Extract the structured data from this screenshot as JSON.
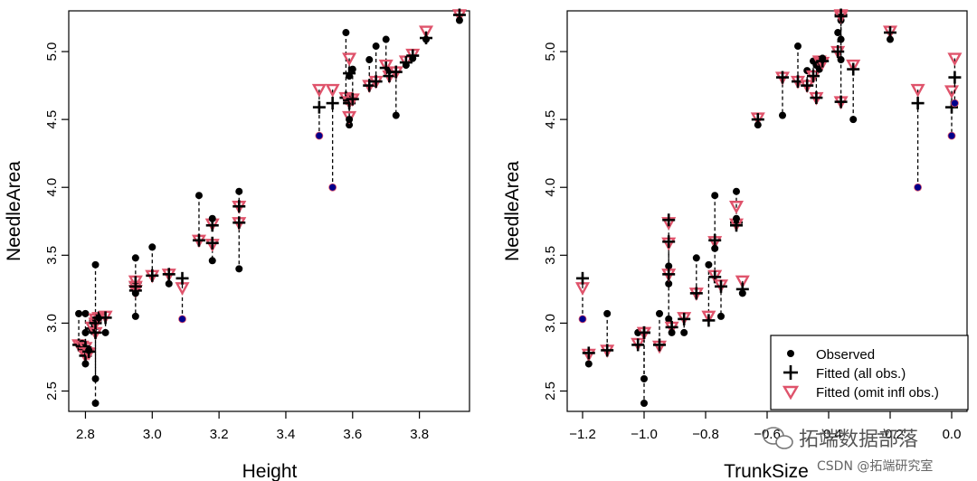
{
  "colors": {
    "observed": "#000000",
    "influential_observed": "#00008B",
    "fitted_all": "#000000",
    "fitted_omit": "#DF536B"
  },
  "watermark": {
    "line1": "拓端数据部落",
    "line2": "CSDN @拓端研究室"
  },
  "chart_data": [
    {
      "type": "scatter",
      "xlabel": "Height",
      "ylabel": "NeedleArea",
      "xlim": [
        2.75,
        3.95
      ],
      "ylim": [
        2.35,
        5.3
      ],
      "xticks": [
        2.8,
        3.0,
        3.2,
        3.4,
        3.6,
        3.8
      ],
      "xtick_labels": [
        "2.8",
        "3.0",
        "3.2",
        "3.4",
        "3.6",
        "3.8"
      ],
      "yticks": [
        2.5,
        3.0,
        3.5,
        4.0,
        4.5,
        5.0
      ],
      "ytick_labels": [
        "2.5",
        "3.0",
        "3.5",
        "4.0",
        "4.5",
        "5.0"
      ],
      "grid": false,
      "points": [
        {
          "x": 2.78,
          "obs": 3.07,
          "fit_all": 2.84,
          "fit_omit": 2.84
        },
        {
          "x": 2.79,
          "obs": 2.85,
          "fit_all": 2.83,
          "fit_omit": 2.83
        },
        {
          "x": 2.8,
          "obs": 3.07,
          "fit_all": 2.82,
          "fit_omit": 2.82
        },
        {
          "x": 2.8,
          "obs": 2.93,
          "fit_all": 2.8,
          "fit_omit": 2.78
        },
        {
          "x": 2.8,
          "obs": 2.7,
          "fit_all": 2.76,
          "fit_omit": 2.76
        },
        {
          "x": 2.81,
          "obs": 2.8,
          "fit_all": 2.79,
          "fit_omit": 2.78
        },
        {
          "x": 2.82,
          "obs": 2.95,
          "fit_all": 2.96,
          "fit_omit": 2.97
        },
        {
          "x": 2.83,
          "obs": 3.43,
          "fit_all": 3.02,
          "fit_omit": 3.03
        },
        {
          "x": 2.83,
          "obs": 2.59,
          "fit_all": 2.93,
          "fit_omit": 2.93
        },
        {
          "x": 2.83,
          "obs": 2.41,
          "fit_all": 3.0,
          "fit_omit": 3.0
        },
        {
          "x": 2.84,
          "obs": 3.04,
          "fit_all": 3.04,
          "fit_omit": 3.04
        },
        {
          "x": 2.86,
          "obs": 2.93,
          "fit_all": 3.04,
          "fit_omit": 3.05
        },
        {
          "x": 2.95,
          "obs": 3.48,
          "fit_all": 3.3,
          "fit_omit": 3.31
        },
        {
          "x": 2.95,
          "obs": 3.05,
          "fit_all": 3.24,
          "fit_omit": 3.24
        },
        {
          "x": 2.95,
          "obs": 3.22,
          "fit_all": 3.27,
          "fit_omit": 3.27
        },
        {
          "x": 3.0,
          "obs": 3.56,
          "fit_all": 3.35,
          "fit_omit": 3.35
        },
        {
          "x": 3.05,
          "obs": 3.29,
          "fit_all": 3.36,
          "fit_omit": 3.36
        },
        {
          "x": 3.09,
          "obs": 3.03,
          "fit_all": 3.33,
          "fit_omit": 3.26,
          "influential": true
        },
        {
          "x": 3.14,
          "obs": 3.94,
          "fit_all": 3.61,
          "fit_omit": 3.61
        },
        {
          "x": 3.18,
          "obs": 3.46,
          "fit_all": 3.59,
          "fit_omit": 3.58
        },
        {
          "x": 3.18,
          "obs": 3.77,
          "fit_all": 3.72,
          "fit_omit": 3.73
        },
        {
          "x": 3.26,
          "obs": 3.97,
          "fit_all": 3.86,
          "fit_omit": 3.86
        },
        {
          "x": 3.26,
          "obs": 3.4,
          "fit_all": 3.74,
          "fit_omit": 3.74
        },
        {
          "x": 3.5,
          "obs": 4.38,
          "fit_all": 4.59,
          "fit_omit": 4.72,
          "influential": true
        },
        {
          "x": 3.54,
          "obs": 4.0,
          "fit_all": 4.62,
          "fit_omit": 4.72,
          "influential": true
        },
        {
          "x": 3.58,
          "obs": 5.14,
          "fit_all": 4.66,
          "fit_omit": 4.66
        },
        {
          "x": 3.59,
          "obs": 4.46,
          "fit_all": 4.62,
          "fit_omit": 4.63
        },
        {
          "x": 3.59,
          "obs": 4.5,
          "fit_all": 4.64,
          "fit_omit": 4.52
        },
        {
          "x": 3.59,
          "obs": 4.82,
          "fit_all": 4.84,
          "fit_omit": 4.95
        },
        {
          "x": 3.6,
          "obs": 4.87,
          "fit_all": 4.65,
          "fit_omit": 4.65
        },
        {
          "x": 3.65,
          "obs": 4.94,
          "fit_all": 4.75,
          "fit_omit": 4.75
        },
        {
          "x": 3.67,
          "obs": 5.04,
          "fit_all": 4.78,
          "fit_omit": 4.78
        },
        {
          "x": 3.7,
          "obs": 5.09,
          "fit_all": 4.88,
          "fit_omit": 4.9
        },
        {
          "x": 3.71,
          "obs": 4.86,
          "fit_all": 4.82,
          "fit_omit": 4.82
        },
        {
          "x": 3.73,
          "obs": 4.53,
          "fit_all": 4.85,
          "fit_omit": 4.85
        },
        {
          "x": 3.76,
          "obs": 4.9,
          "fit_all": 4.92,
          "fit_omit": 4.93
        },
        {
          "x": 3.78,
          "obs": 4.95,
          "fit_all": 4.97,
          "fit_omit": 4.98
        },
        {
          "x": 3.82,
          "obs": 5.09,
          "fit_all": 5.1,
          "fit_omit": 5.15
        },
        {
          "x": 3.92,
          "obs": 5.23,
          "fit_all": 5.27,
          "fit_omit": 5.27
        }
      ]
    },
    {
      "type": "scatter",
      "xlabel": "TrunkSize",
      "ylabel": "NeedleArea",
      "xlim": [
        -1.25,
        0.05
      ],
      "ylim": [
        2.35,
        5.3
      ],
      "xticks": [
        -1.2,
        -1.0,
        -0.8,
        -0.6,
        -0.4,
        -0.2,
        0.0
      ],
      "xtick_labels": [
        "−1.2",
        "−1.0",
        "−0.8",
        "−0.6",
        "−0.4",
        "−0.2",
        "0.0"
      ],
      "yticks": [
        2.5,
        3.0,
        3.5,
        4.0,
        4.5,
        5.0
      ],
      "ytick_labels": [
        "2.5",
        "3.0",
        "3.5",
        "4.0",
        "4.5",
        "5.0"
      ],
      "grid": false,
      "legend": {
        "position": "bottom-right",
        "entries": [
          "Observed",
          "Fitted (all obs.)",
          "Fitted (omit infl obs.)"
        ]
      },
      "points": [
        {
          "x": -1.2,
          "obs": 3.03,
          "fit_all": 3.33,
          "fit_omit": 3.26,
          "influential": true
        },
        {
          "x": -1.18,
          "obs": 2.7,
          "fit_all": 2.78,
          "fit_omit": 2.77
        },
        {
          "x": -1.12,
          "obs": 3.07,
          "fit_all": 2.8,
          "fit_omit": 2.8
        },
        {
          "x": -1.02,
          "obs": 2.93,
          "fit_all": 2.84,
          "fit_omit": 2.85
        },
        {
          "x": -1.0,
          "obs": 2.59,
          "fit_all": 2.93,
          "fit_omit": 2.93
        },
        {
          "x": -1.0,
          "obs": 2.41,
          "fit_all": 2.93,
          "fit_omit": 2.93
        },
        {
          "x": -0.95,
          "obs": 3.07,
          "fit_all": 2.84,
          "fit_omit": 2.83
        },
        {
          "x": -0.92,
          "obs": 3.29,
          "fit_all": 3.76,
          "fit_omit": 3.74
        },
        {
          "x": -0.92,
          "obs": 3.42,
          "fit_all": 3.6,
          "fit_omit": 3.59
        },
        {
          "x": -0.92,
          "obs": 3.03,
          "fit_all": 3.36,
          "fit_omit": 3.36
        },
        {
          "x": -0.91,
          "obs": 2.93,
          "fit_all": 2.97,
          "fit_omit": 2.97
        },
        {
          "x": -0.87,
          "obs": 2.93,
          "fit_all": 3.03,
          "fit_omit": 3.04
        },
        {
          "x": -0.83,
          "obs": 3.48,
          "fit_all": 3.22,
          "fit_omit": 3.22
        },
        {
          "x": -0.79,
          "obs": 3.43,
          "fit_all": 3.02,
          "fit_omit": 3.05
        },
        {
          "x": -0.77,
          "obs": 3.94,
          "fit_all": 3.61,
          "fit_omit": 3.6
        },
        {
          "x": -0.77,
          "obs": 3.55,
          "fit_all": 3.34,
          "fit_omit": 3.35
        },
        {
          "x": -0.75,
          "obs": 3.05,
          "fit_all": 3.27,
          "fit_omit": 3.28
        },
        {
          "x": -0.7,
          "obs": 3.97,
          "fit_all": 3.74,
          "fit_omit": 3.86
        },
        {
          "x": -0.7,
          "obs": 3.77,
          "fit_all": 3.72,
          "fit_omit": 3.73
        },
        {
          "x": -0.68,
          "obs": 3.22,
          "fit_all": 3.25,
          "fit_omit": 3.31
        },
        {
          "x": -0.63,
          "obs": 4.46,
          "fit_all": 4.5,
          "fit_omit": 4.51
        },
        {
          "x": -0.55,
          "obs": 4.53,
          "fit_all": 4.81,
          "fit_omit": 4.81
        },
        {
          "x": -0.5,
          "obs": 5.04,
          "fit_all": 4.78,
          "fit_omit": 4.78
        },
        {
          "x": -0.47,
          "obs": 4.86,
          "fit_all": 4.75,
          "fit_omit": 4.75
        },
        {
          "x": -0.45,
          "obs": 4.93,
          "fit_all": 4.82,
          "fit_omit": 4.82
        },
        {
          "x": -0.44,
          "obs": 4.9,
          "fit_all": 4.66,
          "fit_omit": 4.66
        },
        {
          "x": -0.43,
          "obs": 4.87,
          "fit_all": 4.92,
          "fit_omit": 4.93
        },
        {
          "x": -0.42,
          "obs": 4.95,
          "fit_all": 4.93,
          "fit_omit": 4.92
        },
        {
          "x": -0.37,
          "obs": 5.14,
          "fit_all": 5.0,
          "fit_omit": 5.0
        },
        {
          "x": -0.36,
          "obs": 5.09,
          "fit_all": 5.27,
          "fit_omit": 5.27
        },
        {
          "x": -0.36,
          "obs": 5.23,
          "fit_all": 4.63,
          "fit_omit": 4.63
        },
        {
          "x": -0.36,
          "obs": 4.94,
          "fit_all": 5.26,
          "fit_omit": 5.26
        },
        {
          "x": -0.32,
          "obs": 4.5,
          "fit_all": 4.87,
          "fit_omit": 4.9
        },
        {
          "x": -0.2,
          "obs": 5.09,
          "fit_all": 5.14,
          "fit_omit": 5.15
        },
        {
          "x": -0.11,
          "obs": 4.0,
          "fit_all": 4.62,
          "fit_omit": 4.72,
          "influential": true
        },
        {
          "x": 0.0,
          "obs": 4.38,
          "fit_all": 4.59,
          "fit_omit": 4.71,
          "influential": true
        },
        {
          "x": 0.01,
          "obs": 4.62,
          "fit_all": 4.81,
          "fit_omit": 4.95,
          "influential": true
        }
      ]
    }
  ]
}
